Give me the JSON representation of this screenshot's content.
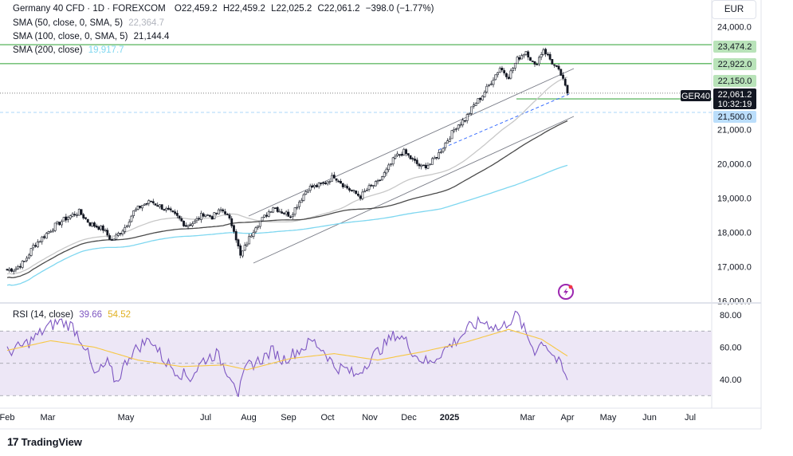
{
  "header": {
    "symbol": "Germany 40 CFD · 1D · FOREXCOM",
    "open_label": "O",
    "open": "22,459.2",
    "high_label": "H",
    "high": "22,459.2",
    "low_label": "L",
    "low": "22,025.2",
    "close_label": "C",
    "close": "22,061.2",
    "change": "−398.0 (−1.77%)"
  },
  "indicators": {
    "sma50_label": "SMA (50, close, 0, SMA, 5)",
    "sma50_value": "22,364.7",
    "sma100_label": "SMA (100, close, 0, SMA, 5)",
    "sma100_value": "21,144.4",
    "sma200_label": "SMA (200, close)",
    "sma200_value": "19,917.7",
    "rsi_label": "RSI (14, close)",
    "rsi_value": "39.66",
    "rsi_ma_value": "54.52"
  },
  "currency": "EUR",
  "price_badges": {
    "resistance_1": "23,474.2",
    "resistance_2": "22,922.0",
    "support_1": "22,150.0",
    "last_price": "22,061.2",
    "countdown": "10:32:19",
    "symbol_tag": "GER40",
    "support_2": "21,500.0"
  },
  "branding": {
    "logo_text": "TradingView",
    "logo_mark": "17"
  },
  "colors": {
    "candle": "#131722",
    "sma50": "#c8c8c8",
    "sma100": "#4a4a4a",
    "sma200": "#7fd7f0",
    "rsi_line": "#7e57c2",
    "rsi_ma": "#f7c744",
    "rsi_band": "#ede7f6",
    "level_green": "#66bb6a",
    "badge_green": "#b9e3b9",
    "badge_blue": "#bbdefb",
    "channel": "#787b86",
    "trendline_blue": "#2962ff"
  },
  "chart_data": [
    {
      "type": "candlestick",
      "title": "Germany 40 CFD · 1D · FOREXCOM",
      "x_ticks": [
        "Feb",
        "Mar",
        "May",
        "Jul",
        "Aug",
        "Sep",
        "Oct",
        "Nov",
        "Dec",
        "2025",
        "Mar",
        "Apr",
        "May",
        "Jun",
        "Jul"
      ],
      "y_ticks": [
        "24,000.0",
        "23,000.0",
        "22,000.0",
        "21,000.0",
        "20,000.0",
        "19,000.0",
        "18,000.0",
        "17,000.0",
        "16,000.0"
      ],
      "ylim": [
        16000,
        24400
      ],
      "price_path": [
        [
          0,
          16900
        ],
        [
          4,
          16950
        ],
        [
          8,
          17150
        ],
        [
          12,
          17600
        ],
        [
          17,
          17900
        ],
        [
          22,
          18200
        ],
        [
          28,
          18450
        ],
        [
          33,
          18600
        ],
        [
          38,
          18250
        ],
        [
          44,
          18100
        ],
        [
          48,
          17750
        ],
        [
          54,
          18150
        ],
        [
          58,
          18600
        ],
        [
          62,
          18800
        ],
        [
          66,
          18900
        ],
        [
          72,
          18700
        ],
        [
          78,
          18450
        ],
        [
          82,
          18200
        ],
        [
          86,
          18300
        ],
        [
          90,
          18550
        ],
        [
          94,
          18450
        ],
        [
          98,
          18650
        ],
        [
          100,
          18600
        ],
        [
          104,
          18100
        ],
        [
          107,
          17300
        ],
        [
          110,
          17700
        ],
        [
          114,
          18200
        ],
        [
          118,
          18450
        ],
        [
          122,
          18750
        ],
        [
          126,
          18600
        ],
        [
          130,
          18500
        ],
        [
          134,
          18900
        ],
        [
          138,
          19300
        ],
        [
          142,
          19350
        ],
        [
          146,
          19450
        ],
        [
          150,
          19650
        ],
        [
          154,
          19400
        ],
        [
          158,
          19200
        ],
        [
          162,
          19050
        ],
        [
          166,
          19300
        ],
        [
          170,
          19450
        ],
        [
          174,
          19800
        ],
        [
          178,
          20200
        ],
        [
          182,
          20350
        ],
        [
          186,
          20100
        ],
        [
          190,
          19900
        ],
        [
          194,
          20000
        ],
        [
          198,
          20300
        ],
        [
          202,
          20700
        ],
        [
          206,
          21100
        ],
        [
          210,
          21300
        ],
        [
          214,
          21700
        ],
        [
          218,
          22000
        ],
        [
          222,
          22400
        ],
        [
          226,
          22800
        ],
        [
          230,
          22550
        ],
        [
          234,
          23050
        ],
        [
          238,
          23300
        ],
        [
          242,
          22850
        ],
        [
          246,
          23350
        ],
        [
          250,
          22950
        ],
        [
          254,
          22600
        ],
        [
          257,
          22061
        ]
      ],
      "resistance_levels": [
        23474.2,
        22922.0
      ],
      "support_levels": [
        22150.0,
        21500.0
      ],
      "last_price": 22061.2
    },
    {
      "type": "line",
      "title": "RSI (14, close)",
      "y_ticks": [
        "80.00",
        "60.00",
        "40.00"
      ],
      "ylim": [
        28,
        84
      ],
      "overbought": 70,
      "oversold": 30,
      "mid": 50,
      "series": [
        {
          "name": "RSI (14, close)",
          "last": 39.66
        },
        {
          "name": "",
          "last": 54.52
        }
      ],
      "rsi_path": [
        [
          0,
          57
        ],
        [
          6,
          60
        ],
        [
          12,
          65
        ],
        [
          18,
          72
        ],
        [
          24,
          76
        ],
        [
          30,
          73
        ],
        [
          36,
          60
        ],
        [
          40,
          42
        ],
        [
          46,
          50
        ],
        [
          50,
          38
        ],
        [
          56,
          55
        ],
        [
          62,
          62
        ],
        [
          66,
          65
        ],
        [
          72,
          52
        ],
        [
          78,
          45
        ],
        [
          84,
          41
        ],
        [
          90,
          52
        ],
        [
          96,
          56
        ],
        [
          100,
          47
        ],
        [
          104,
          40
        ],
        [
          106,
          31
        ],
        [
          110,
          48
        ],
        [
          116,
          52
        ],
        [
          122,
          58
        ],
        [
          126,
          52
        ],
        [
          130,
          55
        ],
        [
          136,
          60
        ],
        [
          140,
          64
        ],
        [
          146,
          57
        ],
        [
          150,
          48
        ],
        [
          156,
          46
        ],
        [
          160,
          42
        ],
        [
          166,
          52
        ],
        [
          172,
          60
        ],
        [
          178,
          68
        ],
        [
          182,
          65
        ],
        [
          188,
          54
        ],
        [
          194,
          50
        ],
        [
          200,
          58
        ],
        [
          206,
          64
        ],
        [
          212,
          72
        ],
        [
          218,
          76
        ],
        [
          222,
          74
        ],
        [
          226,
          71
        ],
        [
          230,
          76
        ],
        [
          234,
          80
        ],
        [
          238,
          68
        ],
        [
          242,
          58
        ],
        [
          246,
          64
        ],
        [
          250,
          56
        ],
        [
          254,
          48
        ],
        [
          257,
          39.66
        ]
      ],
      "ma_path": [
        [
          0,
          58
        ],
        [
          20,
          64
        ],
        [
          40,
          60
        ],
        [
          60,
          52
        ],
        [
          80,
          48
        ],
        [
          100,
          49
        ],
        [
          110,
          46
        ],
        [
          130,
          53
        ],
        [
          150,
          56
        ],
        [
          170,
          52
        ],
        [
          190,
          57
        ],
        [
          210,
          63
        ],
        [
          230,
          71
        ],
        [
          245,
          65
        ],
        [
          257,
          54.52
        ]
      ]
    }
  ]
}
